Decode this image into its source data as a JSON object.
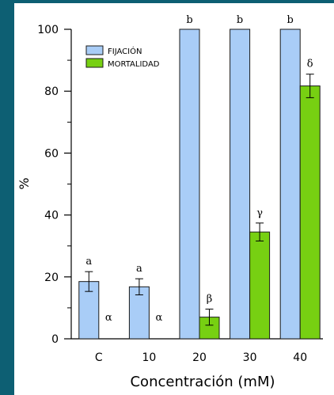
{
  "chart_data": {
    "type": "bar",
    "categories": [
      "C",
      "10",
      "20",
      "30",
      "40"
    ],
    "series": [
      {
        "name": "FIJACIÓN",
        "values": [
          18.5,
          16.8,
          100,
          100,
          100
        ],
        "errors": [
          3.2,
          2.6,
          0,
          0,
          0
        ],
        "labels": [
          "a",
          "a",
          "b",
          "b",
          "b"
        ],
        "color": "#a9cdf7"
      },
      {
        "name": "MORTALIDAD",
        "values": [
          0,
          0,
          7,
          34.5,
          81.7
        ],
        "errors": [
          0,
          0,
          2.6,
          2.9,
          3.8
        ],
        "labels": [
          "α",
          "α",
          "β",
          "γ",
          "δ"
        ],
        "color": "#77d012"
      }
    ],
    "ylabel": "%",
    "xlabel": "Concentración (mM)",
    "ylim": [
      0,
      100
    ],
    "yticks": [
      "0",
      "20",
      "40",
      "60",
      "80",
      "100"
    ],
    "legend_position": "top-left"
  }
}
